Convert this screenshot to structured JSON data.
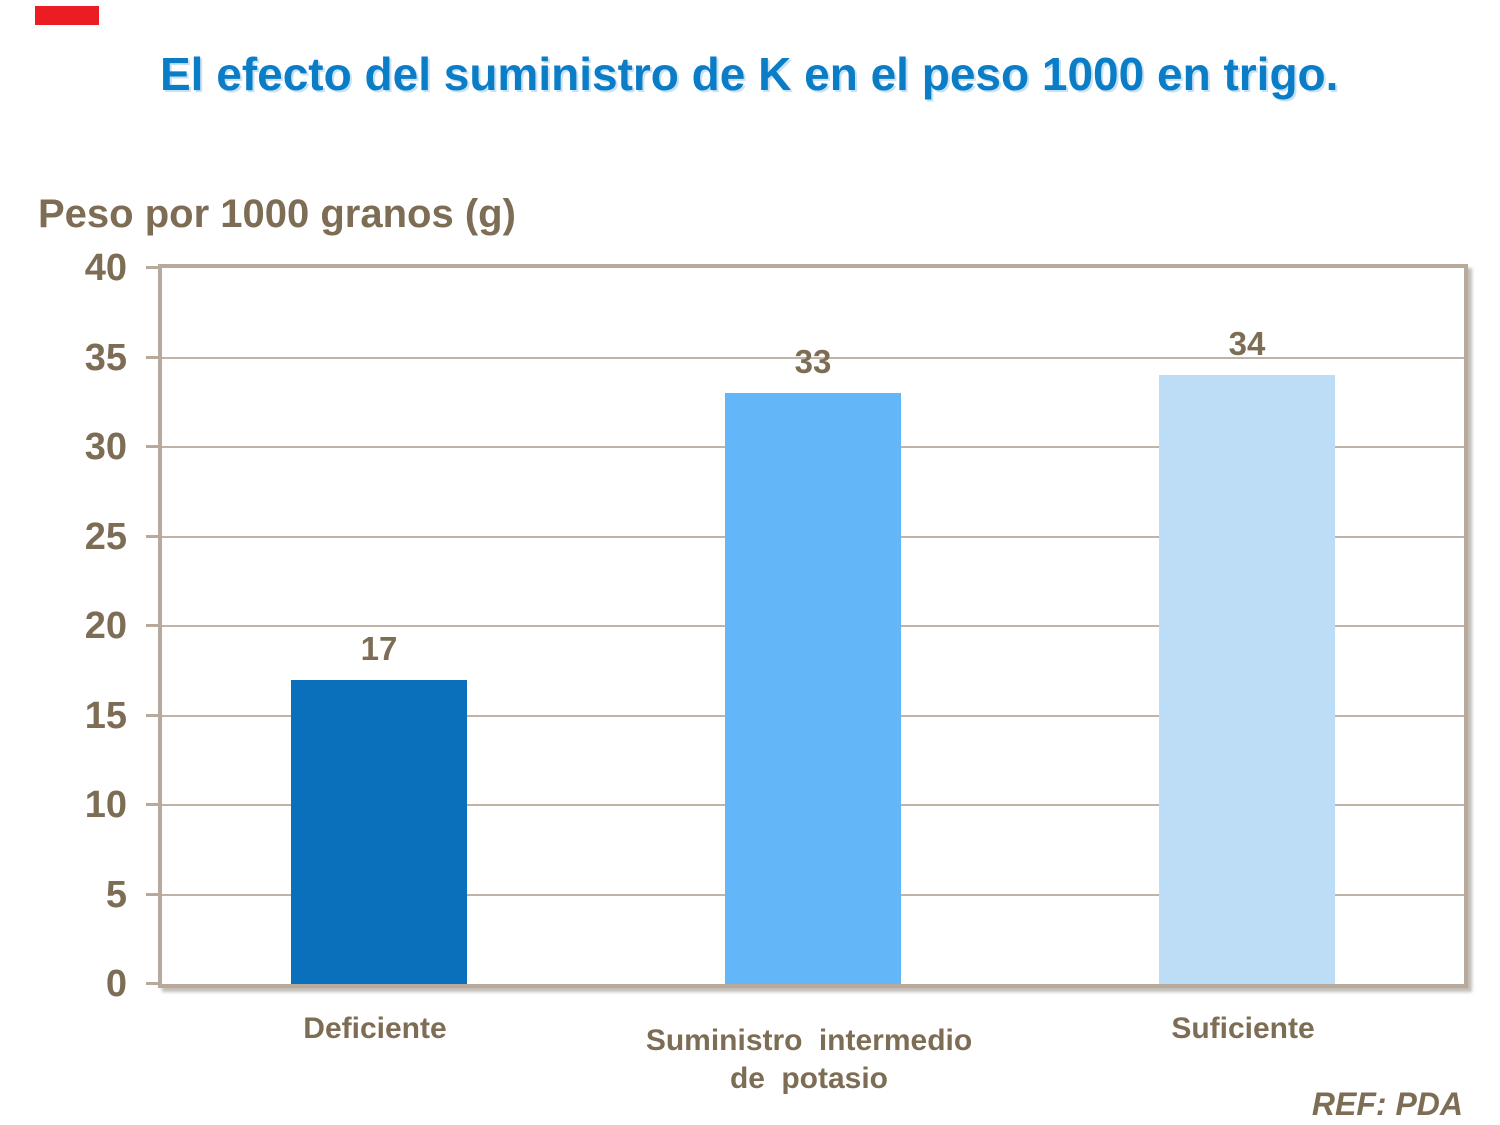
{
  "slide": {
    "ref_label": "REF: PDA"
  },
  "theme": {
    "title_blue": "#0b7dc7",
    "text_brown": "#7e6d55",
    "axis_tan": "#b7a99b",
    "grid_tan": "#c0b3a5",
    "red_mark": "#ec1c24"
  },
  "chart_data": {
    "type": "bar",
    "title": "El efecto del suministro de K en el peso 1000 en trigo.",
    "ylabel": "Peso por 1000 granos (g)",
    "xlabel": "",
    "categories": [
      "Deficiente",
      "Suministro intermedio\nde potasio",
      "Suficiente"
    ],
    "values": [
      17,
      33,
      34
    ],
    "data_labels": [
      "17",
      "33",
      "34"
    ],
    "bar_colors": [
      "#0a70bc",
      "#63b6f7",
      "#bdddf7"
    ],
    "ylim": [
      0,
      40
    ],
    "yticks": [
      0,
      5,
      10,
      15,
      20,
      25,
      30,
      35,
      40
    ],
    "grid": "horizontal",
    "legend": "none",
    "annotation": "REF: PDA"
  }
}
